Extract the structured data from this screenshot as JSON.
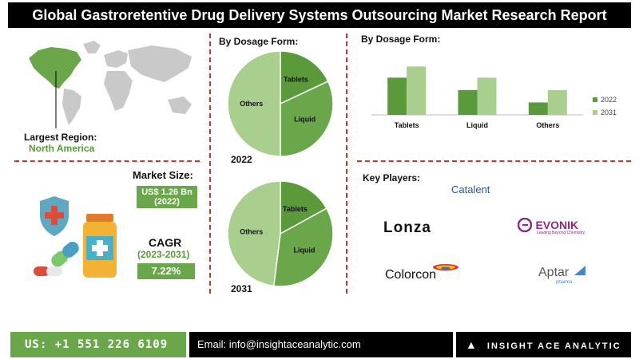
{
  "header": {
    "title": "Global Gastroretentive Drug Delivery Systems Outsourcing Market Research Report"
  },
  "region": {
    "label": "Largest Region:",
    "value": "North America"
  },
  "market": {
    "size_label": "Market Size:",
    "size_value": "US$ 1.26 Bn",
    "size_year": "(2022)",
    "cagr_label": "CAGR",
    "cagr_period": "(2023-2031)",
    "cagr_value": "7.22%"
  },
  "pie_section": {
    "title": "By Dosage Form:"
  },
  "bar_section": {
    "title": "By Dosage Form:"
  },
  "key_players": {
    "title": "Key Players:",
    "companies": [
      "Catalent",
      "Lonza",
      "EVONIK",
      "Leading Beyond Chemistry",
      "Colorcon",
      "Aptar",
      "pharma"
    ]
  },
  "footer": {
    "phone": "US: +1 551 226 6109",
    "email": "Email: info@insightaceanalytic.com",
    "brand": "INSIGHT ACE ANALYTIC"
  },
  "colors": {
    "dark_green": "#5b9a3a",
    "light_green": "#a9cf8f",
    "mid_green": "#8dbd70",
    "accent_red": "#c0392b"
  },
  "chart_data": [
    {
      "type": "pie",
      "year_label": "2022",
      "slices": [
        {
          "label": "Tablets",
          "value": 18
        },
        {
          "label": "Liquid",
          "value": 32
        },
        {
          "label": "Others",
          "value": 50
        }
      ]
    },
    {
      "type": "pie",
      "year_label": "2031",
      "slices": [
        {
          "label": "Tablets",
          "value": 17
        },
        {
          "label": "Liquid",
          "value": 35
        },
        {
          "label": "Others",
          "value": 48
        }
      ]
    },
    {
      "type": "bar",
      "categories": [
        "Tablets",
        "Liquid",
        "Others"
      ],
      "series": [
        {
          "name": "2022",
          "values": [
            3.0,
            2.0,
            1.0
          ]
        },
        {
          "name": "2031",
          "values": [
            3.9,
            3.0,
            2.0
          ]
        }
      ],
      "ylim": [
        0,
        4.5
      ],
      "legend": "right"
    }
  ]
}
